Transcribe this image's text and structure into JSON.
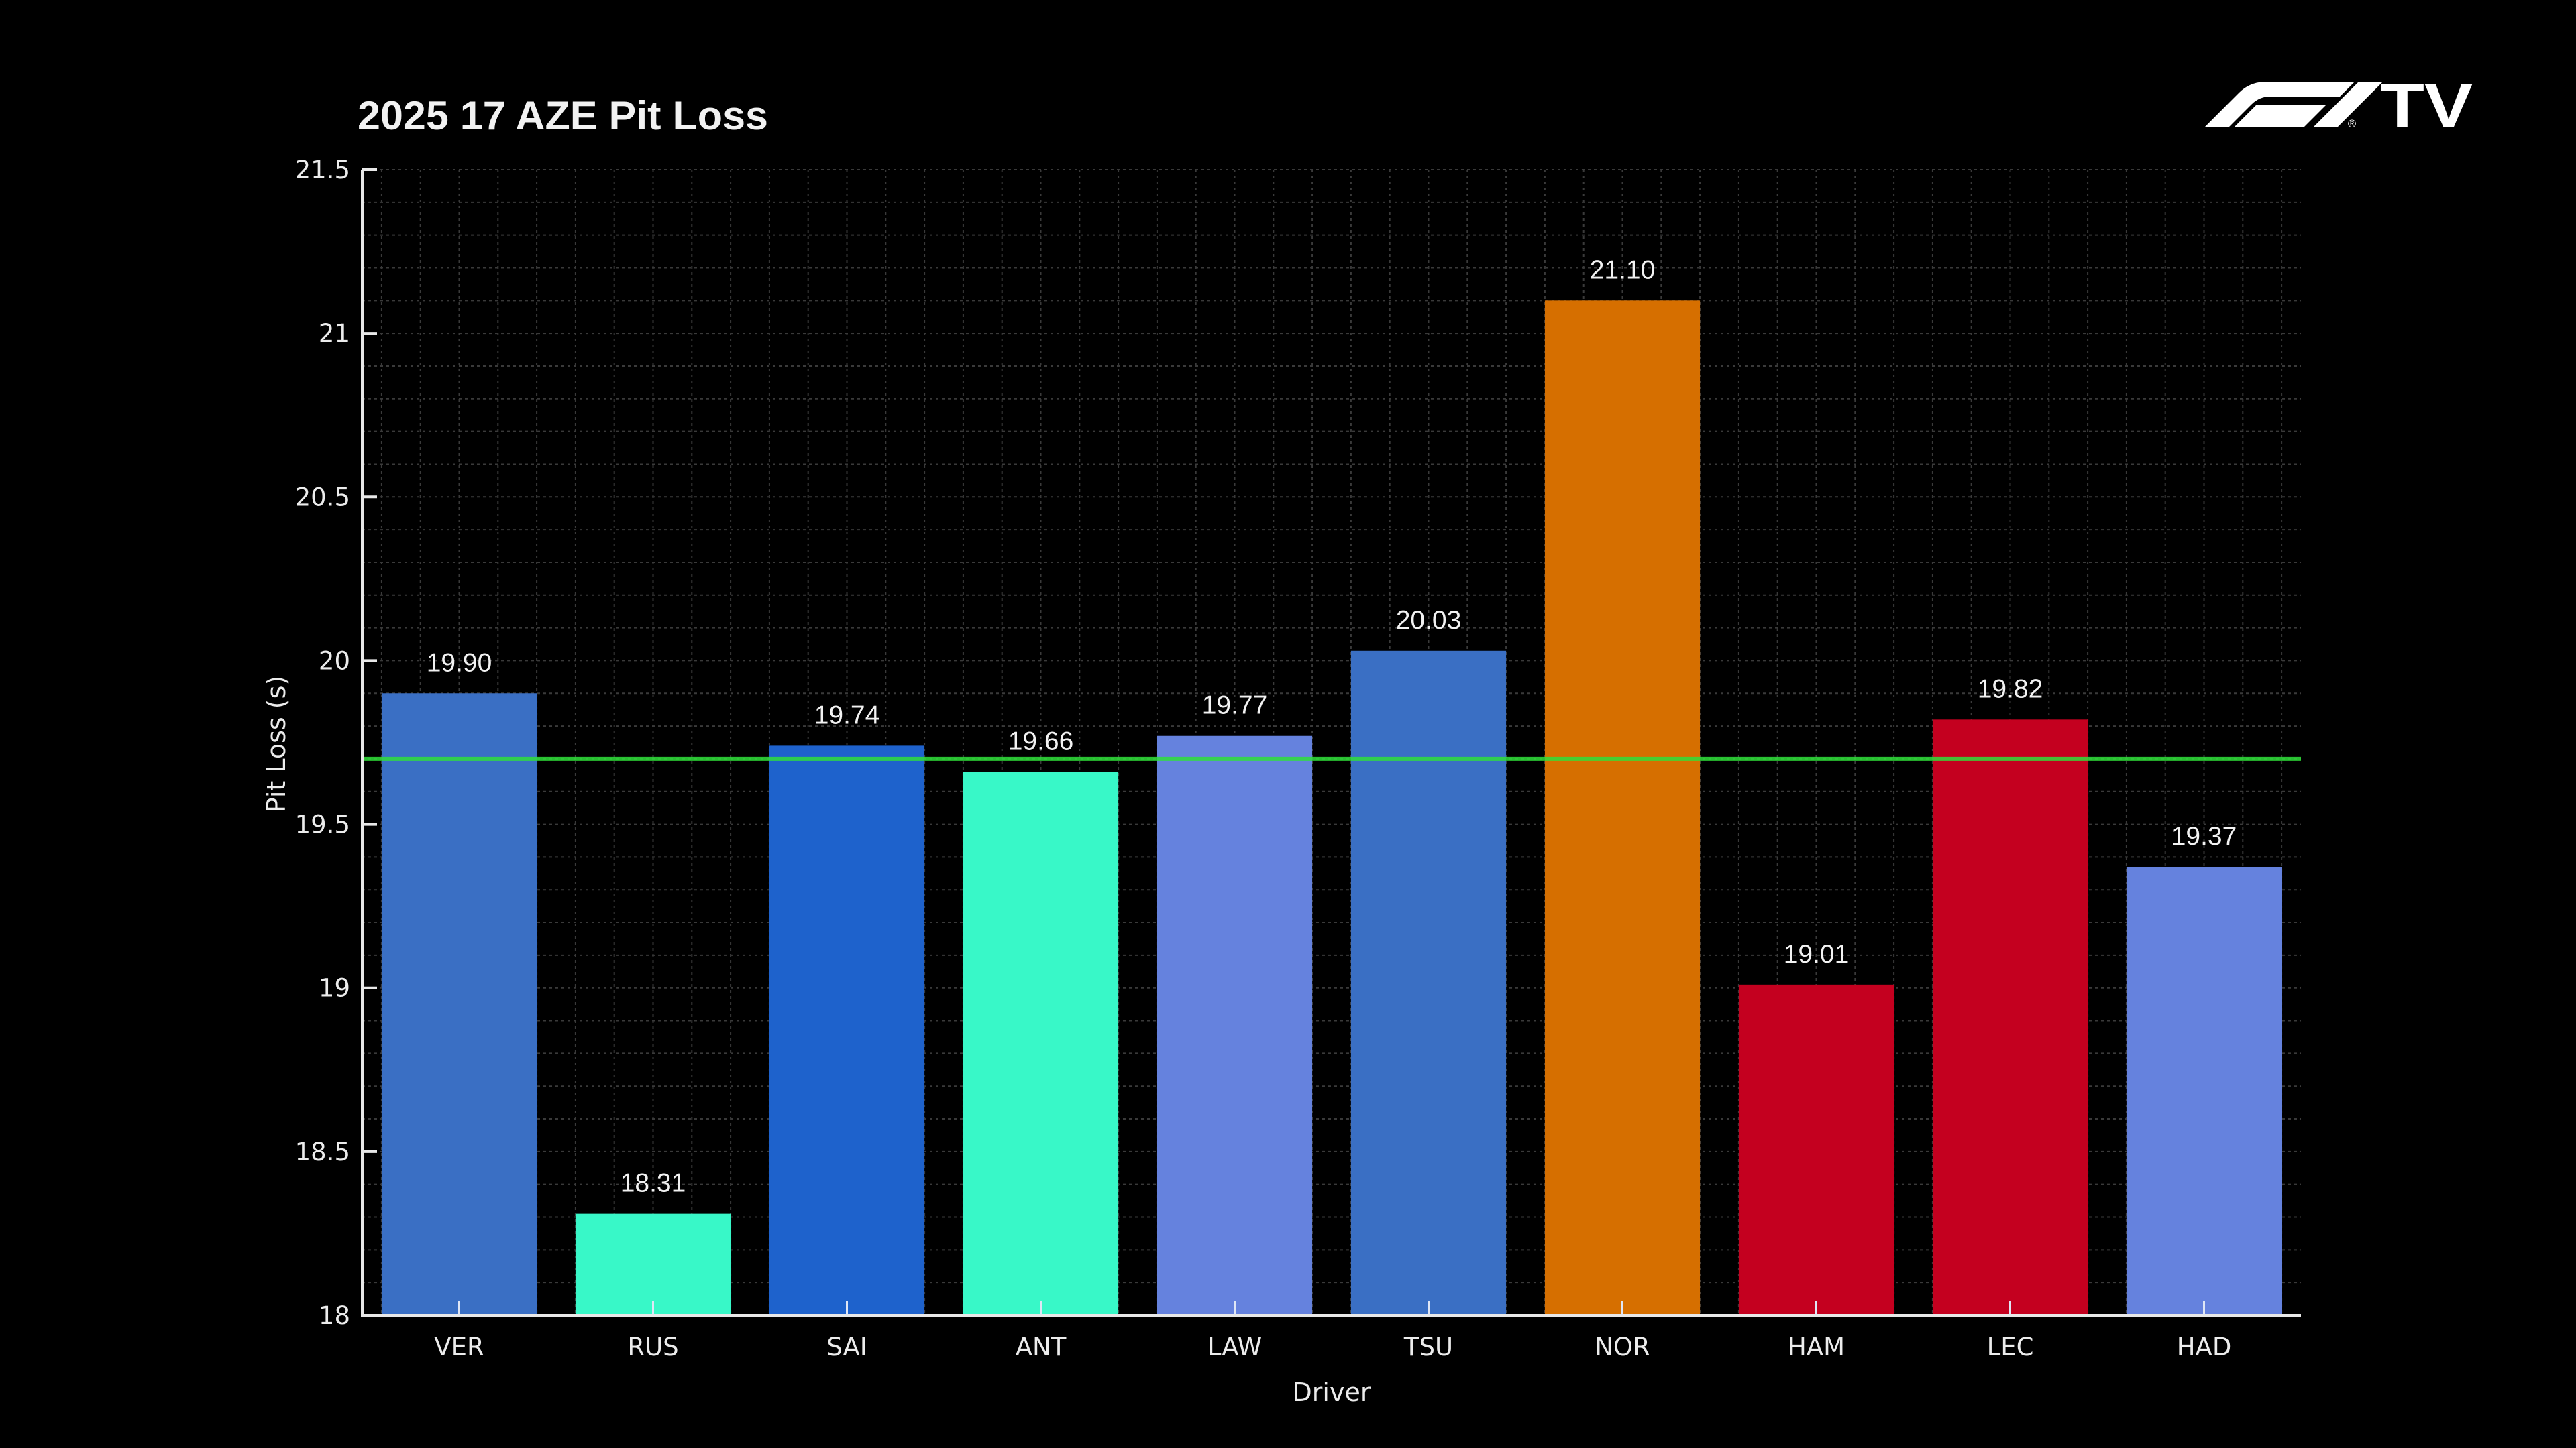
{
  "header": {
    "title": "2025 17 AZE Pit Loss",
    "logo": {
      "name": "f1-tv-logo",
      "brand_text": "TV",
      "registered_mark": "®"
    }
  },
  "colors": {
    "background": "#000000",
    "axis": "#e8e8e8",
    "grid": "#3a3a3a",
    "average_line": "#2fe03a"
  },
  "chart_data": {
    "type": "bar",
    "title": "2025 17 AZE Pit Loss",
    "xlabel": "Driver",
    "ylabel": "Pit Loss (s)",
    "ylim": [
      18,
      21.5
    ],
    "yticks": [
      18,
      18.5,
      19,
      19.5,
      20,
      20.5,
      21,
      21.5
    ],
    "ytick_labels": [
      "18",
      "18.5",
      "19",
      "19.5",
      "20",
      "20.5",
      "21",
      "21.5"
    ],
    "grid": "minor dotted (y every 0.1, x every 0.2 category units)",
    "legend": "none",
    "categories": [
      "VER",
      "RUS",
      "SAI",
      "ANT",
      "LAW",
      "TSU",
      "NOR",
      "HAM",
      "LEC",
      "HAD"
    ],
    "values": [
      19.9,
      18.31,
      19.74,
      19.66,
      19.77,
      20.03,
      21.1,
      19.01,
      19.82,
      19.37
    ],
    "value_labels": [
      "19.90",
      "18.31",
      "19.74",
      "19.66",
      "19.77",
      "20.03",
      "21.10",
      "19.01",
      "19.82",
      "19.37"
    ],
    "bar_colors": [
      "#3A6FC4",
      "#38F8C8",
      "#1E62CC",
      "#38F8C8",
      "#6582DE",
      "#3A6FC4",
      "#D66F00",
      "#C4001F",
      "#C4001F",
      "#6582DE"
    ],
    "reference_lines": [
      {
        "name": "average-pit-loss",
        "orientation": "horizontal",
        "value": 19.7,
        "color": "#2fe03a"
      }
    ]
  }
}
